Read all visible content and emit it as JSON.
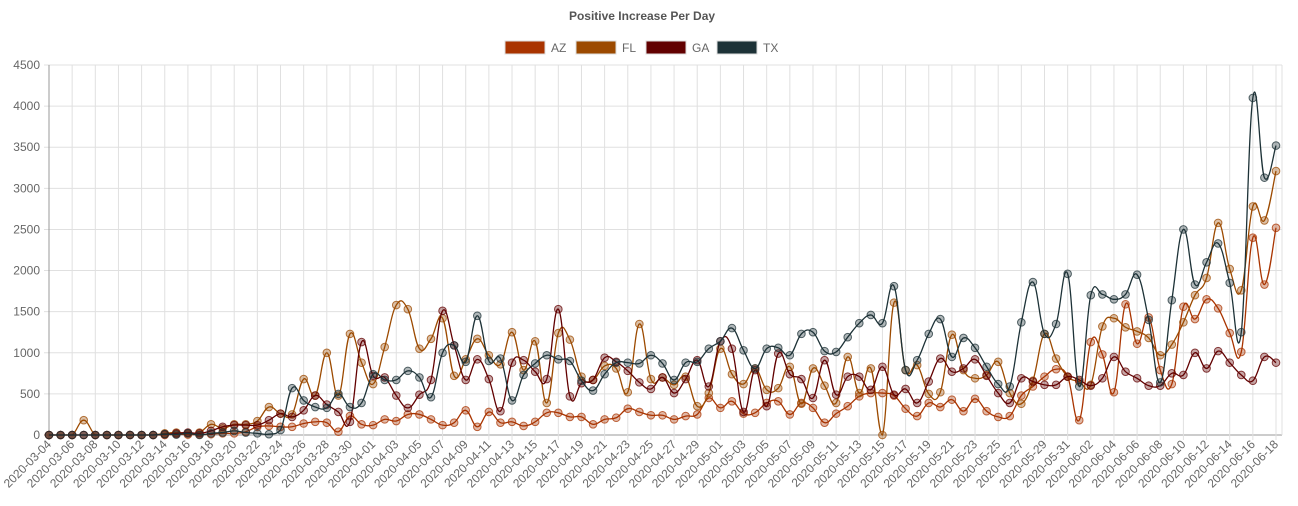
{
  "chart_data": {
    "type": "line",
    "title": "Positive Increase Per Day",
    "xlabel": "",
    "ylabel": "",
    "ylim": [
      0,
      4500
    ],
    "yticks": [
      0,
      500,
      1000,
      1500,
      2000,
      2500,
      3000,
      3500,
      4000,
      4500
    ],
    "grid": true,
    "legend": "top-center",
    "x": [
      "2020-03-04",
      "2020-03-05",
      "2020-03-06",
      "2020-03-07",
      "2020-03-08",
      "2020-03-09",
      "2020-03-10",
      "2020-03-11",
      "2020-03-12",
      "2020-03-13",
      "2020-03-14",
      "2020-03-15",
      "2020-03-16",
      "2020-03-17",
      "2020-03-18",
      "2020-03-19",
      "2020-03-20",
      "2020-03-21",
      "2020-03-22",
      "2020-03-23",
      "2020-03-24",
      "2020-03-25",
      "2020-03-26",
      "2020-03-27",
      "2020-03-28",
      "2020-03-29",
      "2020-03-30",
      "2020-03-31",
      "2020-04-01",
      "2020-04-02",
      "2020-04-03",
      "2020-04-04",
      "2020-04-05",
      "2020-04-06",
      "2020-04-07",
      "2020-04-08",
      "2020-04-09",
      "2020-04-10",
      "2020-04-11",
      "2020-04-12",
      "2020-04-13",
      "2020-04-14",
      "2020-04-15",
      "2020-04-16",
      "2020-04-17",
      "2020-04-18",
      "2020-04-19",
      "2020-04-20",
      "2020-04-21",
      "2020-04-22",
      "2020-04-23",
      "2020-04-24",
      "2020-04-25",
      "2020-04-26",
      "2020-04-27",
      "2020-04-28",
      "2020-04-29",
      "2020-04-30",
      "2020-05-01",
      "2020-05-02",
      "2020-05-03",
      "2020-05-04",
      "2020-05-05",
      "2020-05-06",
      "2020-05-07",
      "2020-05-08",
      "2020-05-09",
      "2020-05-10",
      "2020-05-11",
      "2020-05-12",
      "2020-05-13",
      "2020-05-14",
      "2020-05-15",
      "2020-05-16",
      "2020-05-17",
      "2020-05-18",
      "2020-05-19",
      "2020-05-20",
      "2020-05-21",
      "2020-05-22",
      "2020-05-23",
      "2020-05-24",
      "2020-05-25",
      "2020-05-26",
      "2020-05-27",
      "2020-05-28",
      "2020-05-29",
      "2020-05-30",
      "2020-05-31",
      "2020-06-01",
      "2020-06-02",
      "2020-06-03",
      "2020-06-04",
      "2020-06-05",
      "2020-06-06",
      "2020-06-07",
      "2020-06-08",
      "2020-06-09",
      "2020-06-10",
      "2020-06-11",
      "2020-06-12",
      "2020-06-13",
      "2020-06-14",
      "2020-06-15",
      "2020-06-16",
      "2020-06-17",
      "2020-06-18"
    ],
    "series": [
      {
        "name": "AZ",
        "color": "#a93400",
        "values": [
          0,
          0,
          0,
          0,
          0,
          0,
          0,
          0,
          0,
          0,
          0,
          10,
          5,
          5,
          10,
          20,
          20,
          40,
          100,
          110,
          100,
          100,
          140,
          160,
          150,
          40,
          230,
          130,
          120,
          190,
          170,
          250,
          250,
          190,
          120,
          150,
          300,
          100,
          280,
          150,
          160,
          110,
          160,
          270,
          270,
          220,
          220,
          130,
          190,
          210,
          320,
          280,
          240,
          240,
          190,
          230,
          250,
          450,
          330,
          410,
          260,
          270,
          390,
          410,
          250,
          390,
          330,
          150,
          260,
          350,
          470,
          510,
          510,
          480,
          320,
          230,
          390,
          340,
          430,
          290,
          440,
          290,
          220,
          230,
          480,
          590,
          710,
          800,
          710,
          180,
          1130,
          980,
          520,
          1590,
          1110,
          1430,
          790,
          620,
          1560,
          1410,
          1650,
          1540,
          1240,
          1010,
          2400,
          1830,
          2520
        ]
      },
      {
        "name": "FL",
        "color": "#9c4a00",
        "values": [
          0,
          0,
          0,
          180,
          0,
          0,
          0,
          0,
          0,
          0,
          20,
          30,
          20,
          30,
          130,
          80,
          130,
          130,
          170,
          340,
          260,
          250,
          680,
          480,
          1000,
          480,
          1230,
          880,
          620,
          1070,
          1580,
          1530,
          1050,
          1170,
          1420,
          720,
          920,
          1170,
          970,
          860,
          1250,
          790,
          1140,
          390,
          1240,
          1160,
          710,
          670,
          840,
          810,
          520,
          1350,
          680,
          700,
          610,
          710,
          350,
          510,
          1050,
          740,
          620,
          810,
          550,
          570,
          830,
          380,
          810,
          600,
          390,
          950,
          510,
          810,
          0,
          1610,
          790,
          850,
          500,
          520,
          1220,
          790,
          690,
          730,
          890,
          510,
          380,
          660,
          1230,
          930,
          710,
          650,
          610,
          1320,
          1420,
          1310,
          1260,
          1180,
          970,
          1100,
          1370,
          1700,
          1910,
          2580,
          2020,
          1760,
          2780,
          2610,
          3210
        ]
      },
      {
        "name": "GA",
        "color": "#620000",
        "values": [
          0,
          0,
          0,
          0,
          0,
          0,
          0,
          0,
          0,
          0,
          10,
          20,
          30,
          20,
          50,
          100,
          120,
          120,
          120,
          180,
          260,
          220,
          300,
          480,
          370,
          280,
          160,
          1130,
          720,
          700,
          480,
          330,
          490,
          670,
          1510,
          1090,
          670,
          920,
          680,
          290,
          880,
          910,
          770,
          680,
          1530,
          470,
          630,
          670,
          940,
          890,
          780,
          640,
          560,
          700,
          510,
          680,
          910,
          590,
          1140,
          1050,
          280,
          790,
          350,
          990,
          740,
          680,
          450,
          910,
          490,
          710,
          710,
          550,
          830,
          490,
          560,
          390,
          650,
          930,
          770,
          810,
          920,
          720,
          510,
          390,
          690,
          650,
          610,
          610,
          710,
          670,
          600,
          690,
          950,
          770,
          690,
          600,
          600,
          750,
          730,
          1000,
          810,
          1020,
          880,
          730,
          660,
          950,
          880
        ]
      },
      {
        "name": "TX",
        "color": "#1d3237",
        "values": [
          0,
          0,
          0,
          0,
          0,
          0,
          0,
          0,
          0,
          0,
          10,
          5,
          20,
          0,
          20,
          30,
          50,
          30,
          20,
          10,
          60,
          570,
          420,
          340,
          330,
          500,
          340,
          390,
          740,
          670,
          670,
          780,
          700,
          460,
          1000,
          1090,
          890,
          1450,
          900,
          930,
          420,
          730,
          870,
          970,
          920,
          900,
          660,
          540,
          740,
          880,
          880,
          870,
          970,
          870,
          670,
          880,
          890,
          1050,
          1140,
          1300,
          1030,
          810,
          1050,
          1060,
          970,
          1230,
          1250,
          1020,
          1010,
          1190,
          1360,
          1460,
          1360,
          1810,
          790,
          910,
          1230,
          1410,
          950,
          1180,
          1060,
          830,
          620,
          590,
          1370,
          1860,
          1230,
          1350,
          1960,
          590,
          1700,
          1710,
          1650,
          1710,
          1950,
          1400,
          640,
          1640,
          2500,
          1830,
          2100,
          2330,
          1850,
          1250,
          4100,
          3130,
          3520
        ]
      }
    ]
  }
}
